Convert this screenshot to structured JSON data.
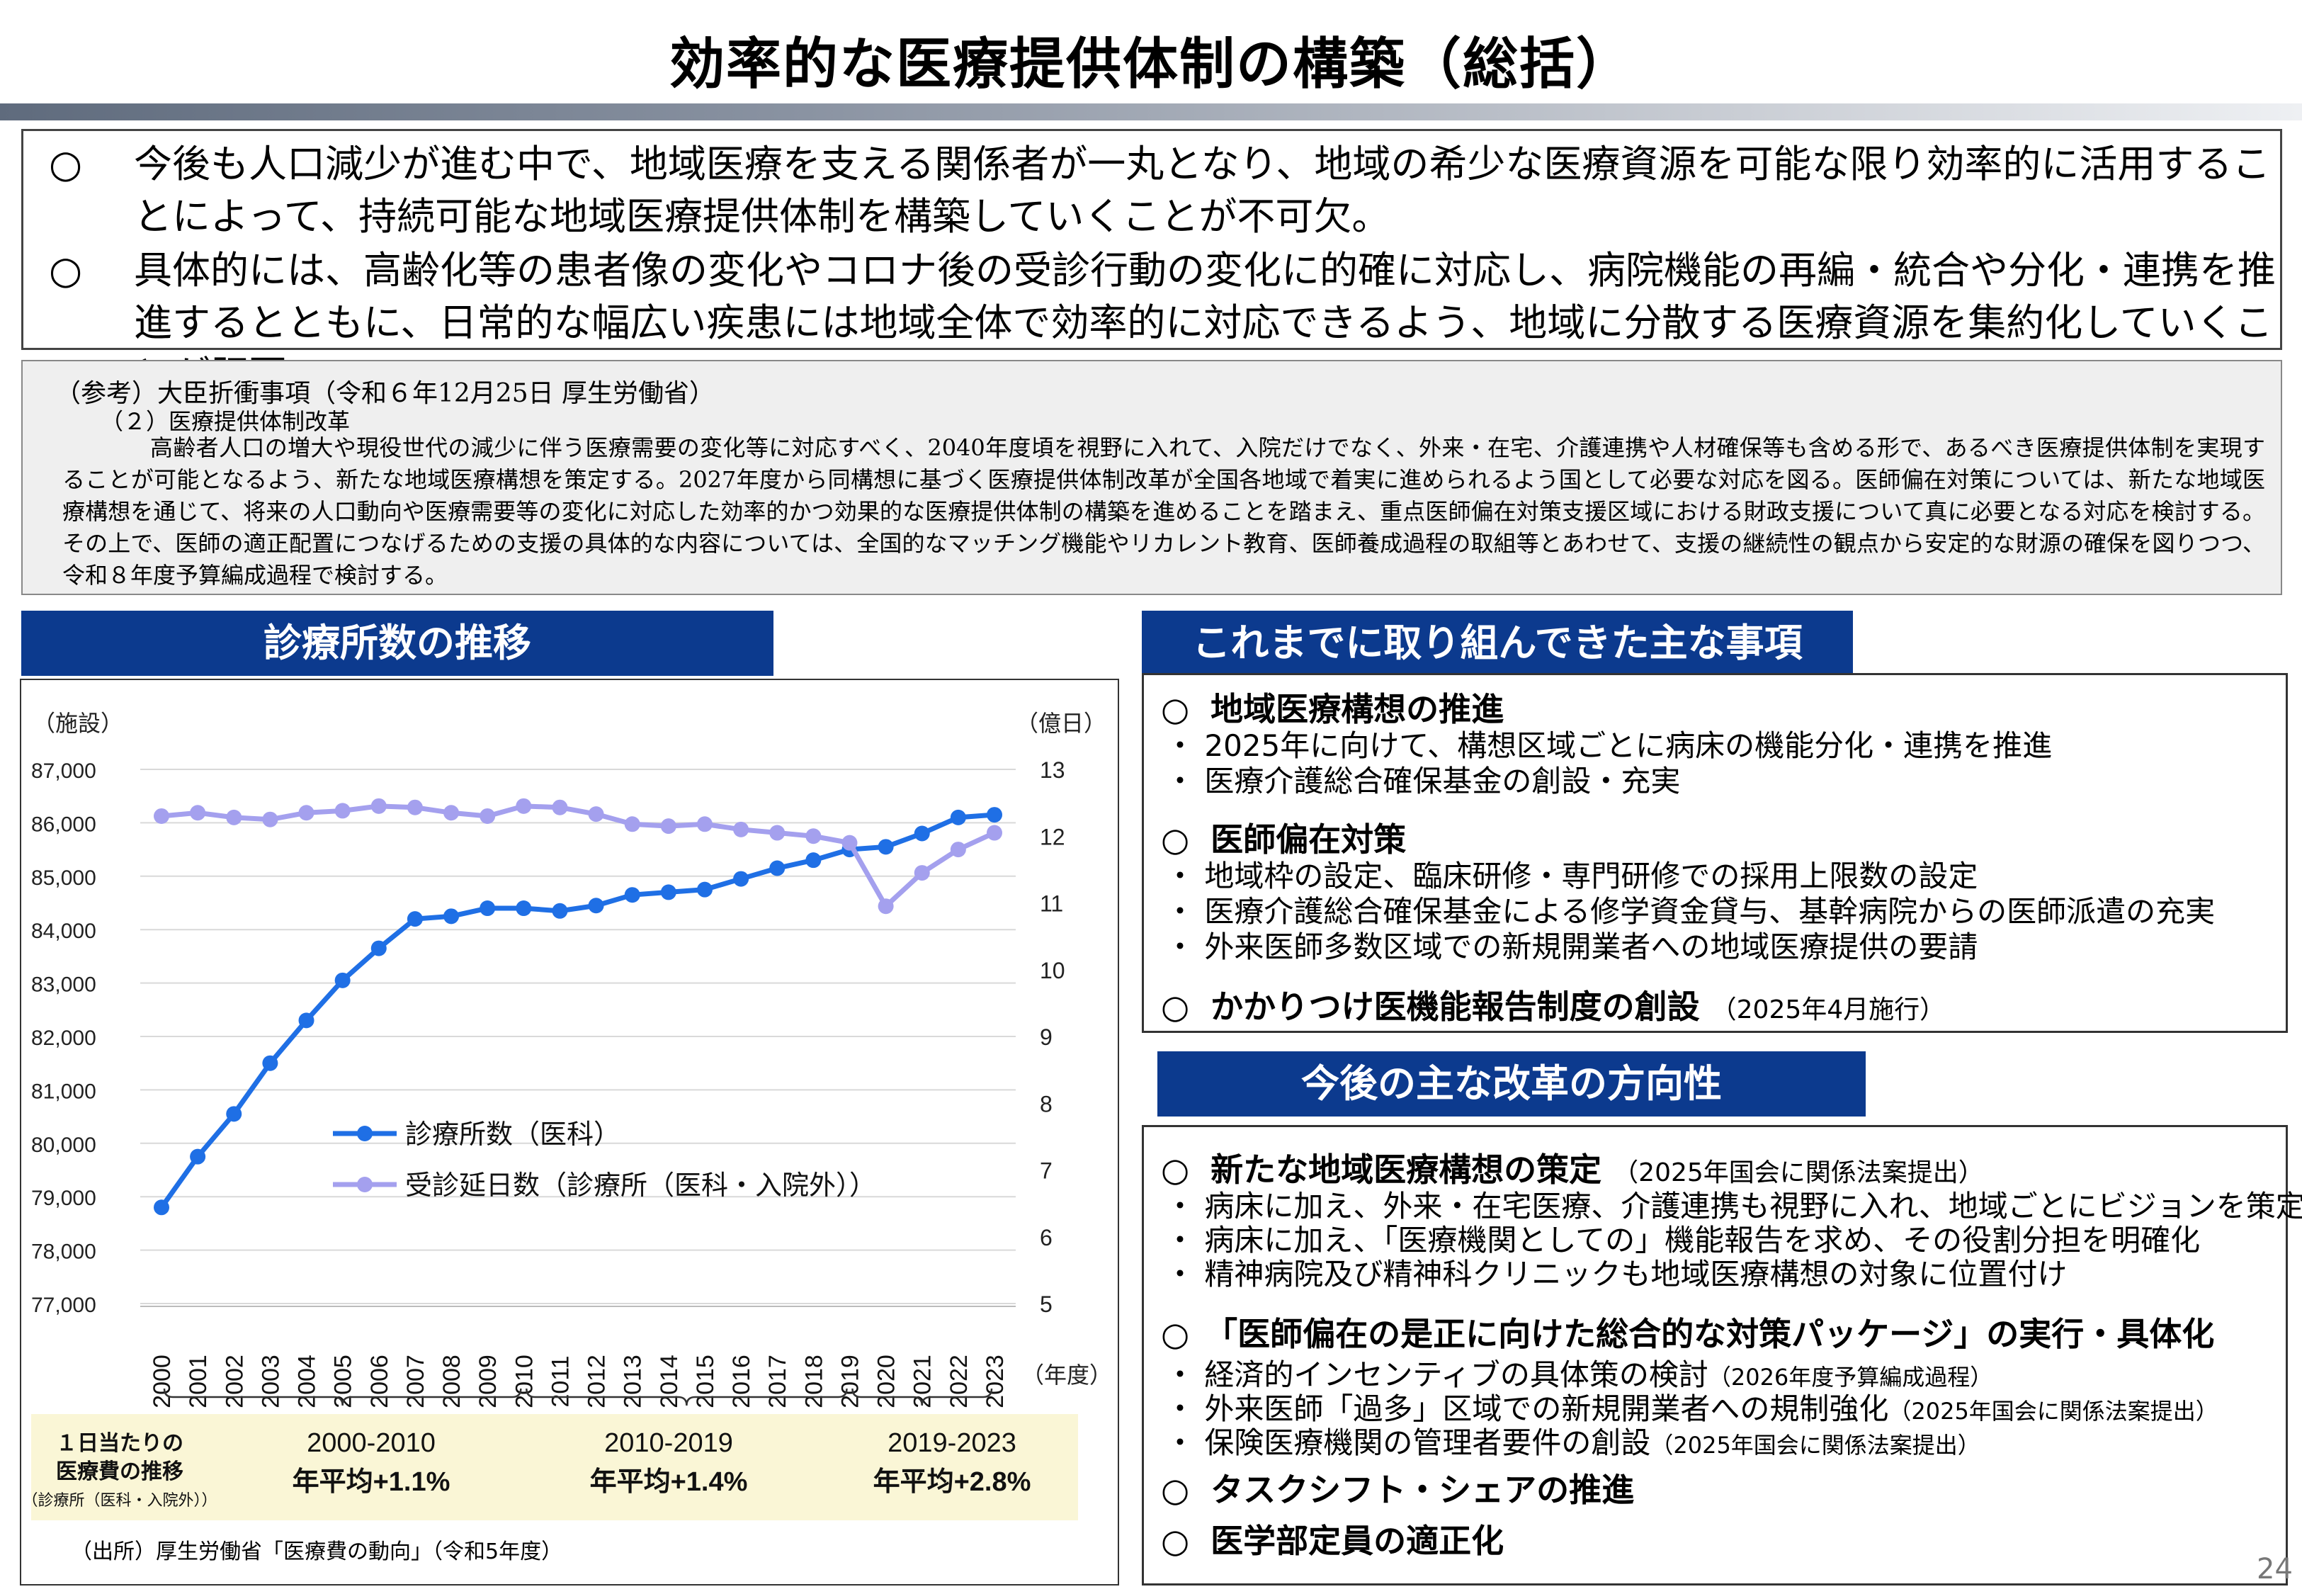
{
  "title": "効率的な医療提供体制の構築（総括）",
  "summary": [
    {
      "mark": "○",
      "text": "今後も人口減少が進む中で、地域医療を支える関係者が一丸となり、地域の希少な医療資源を可能な限り効率的に活用することによって、持続可能な地域医療提供体制を構築していくことが不可欠。"
    },
    {
      "mark": "○",
      "text": "具体的には、高齢化等の患者像の変化やコロナ後の受診行動の変化に的確に対応し、病院機能の再編・統合や分化・連携を推進するとともに、日常的な幅広い疾患には地域全体で効率的に対応できるよう、地域に分散する医療資源を集約化していくことが肝要。"
    }
  ],
  "reference": {
    "heading": "（参考）大臣折衝事項（令和６年12月25日 厚生労働省）",
    "subheading": "（２）医療提供体制改革",
    "body": "高齢者人口の増大や現役世代の減少に伴う医療需要の変化等に対応すべく、2040年度頃を視野に入れて、入院だけでなく、外来・在宅、介護連携や人材確保等も含める形で、あるべき医療提供体制を実現することが可能となるよう、新たな地域医療構想を策定する。2027年度から同構想に基づく医療提供体制改革が全国各地域で着実に進められるよう国として必要な対応を図る。医師偏在対策については、新たな地域医療構想を通じて、将来の人口動向や医療需要等の変化に対応した効率的かつ効果的な医療提供体制の構築を進めることを踏まえ、重点医師偏在対策支援区域における財政支援について真に必要となる対応を検討する。その上で、医師の適正配置につなげるための支援の具体的な内容については、全国的なマッチング機能やリカレント教育、医師養成過程の取組等とあわせて、支援の継続性の観点から安定的な財源の確保を図りつつ、令和８年度予算編成過程で検討する。"
  },
  "left_header": "診療所数の推移",
  "chart_data": {
    "type": "line",
    "title": "",
    "x": [
      "2000",
      "2001",
      "2002",
      "2003",
      "2004",
      "2005",
      "2006",
      "2007",
      "2008",
      "2009",
      "2010",
      "2011",
      "2012",
      "2013",
      "2014",
      "2015",
      "2016",
      "2017",
      "2018",
      "2019",
      "2020",
      "2021",
      "2022",
      "2023"
    ],
    "xlabel": "（年度）",
    "ylabel_left": "（施設）",
    "ylabel_right": "（億日）",
    "ylim_left": [
      77000,
      87000
    ],
    "ylim_right": [
      5,
      13
    ],
    "yticks_left": [
      "87,000",
      "86,000",
      "85,000",
      "84,000",
      "83,000",
      "82,000",
      "81,000",
      "80,000",
      "79,000",
      "78,000",
      "77,000"
    ],
    "yticks_right": [
      "13",
      "12",
      "11",
      "10",
      "9",
      "8",
      "7",
      "6",
      "5"
    ],
    "grid": true,
    "legend_position": "center-left",
    "series": [
      {
        "name": "診療所数（医科）",
        "axis": "left",
        "color": "#1f6fe5",
        "values": [
          78800,
          79750,
          80550,
          81500,
          82300,
          83050,
          83650,
          84200,
          84250,
          84400,
          84400,
          84350,
          84450,
          84650,
          84700,
          84750,
          84950,
          85150,
          85300,
          85500,
          85550,
          85800,
          86100,
          86150
        ]
      },
      {
        "name": "受診延日数（診療所（医科・入院外））",
        "axis": "right",
        "color": "#a4a0ee",
        "values": [
          12.3,
          12.35,
          12.28,
          12.25,
          12.35,
          12.38,
          12.45,
          12.43,
          12.35,
          12.3,
          12.45,
          12.43,
          12.33,
          12.18,
          12.15,
          12.18,
          12.1,
          12.05,
          12.0,
          11.9,
          10.95,
          11.45,
          11.8,
          12.05
        ]
      }
    ],
    "periods": [
      {
        "label": "2000-2010",
        "value": "年平均+1.1%"
      },
      {
        "label": "2010-2019",
        "value": "年平均+1.4%"
      },
      {
        "label": "2019-2023",
        "value": "年平均+2.8%"
      }
    ],
    "period_title": [
      "１日当たりの",
      "医療費の推移"
    ],
    "period_note": "（診療所（医科・入院外））",
    "source": "（出所）厚生労働省「医療費の動向」（令和5年度）"
  },
  "right_section1": {
    "header": "これまでに取り組んできた主な事項",
    "items": [
      {
        "mark": "○",
        "title": "地域医療構想の推進",
        "note": "",
        "bullets": [
          "・ 2025年に向けて、構想区域ごとに病床の機能分化・連携を推進",
          "・ 医療介護総合確保基金の創設・充実"
        ]
      },
      {
        "mark": "○",
        "title": "医師偏在対策",
        "note": "",
        "bullets": [
          "・ 地域枠の設定、臨床研修・専門研修での採用上限数の設定",
          "・ 医療介護総合確保基金による修学資金貸与、基幹病院からの医師派遣の充実",
          "・ 外来医師多数区域での新規開業者への地域医療提供の要請"
        ]
      },
      {
        "mark": "○",
        "title": "かかりつけ医機能報告制度の創設",
        "note": "（2025年4月施行）",
        "bullets": []
      }
    ]
  },
  "right_section2": {
    "header": "今後の主な改革の方向性",
    "items": [
      {
        "mark": "○",
        "title": "新たな地域医療構想の策定",
        "note": "（2025年国会に関係法案提出）",
        "bullets": [
          {
            "text": "・ 病床に加え、外来・在宅医療、介護連携も視野に入れ、地域ごとにビジョンを策定",
            "note": ""
          },
          {
            "text": "・ 病床に加え、「医療機関としての」機能報告を求め、その役割分担を明確化",
            "note": ""
          },
          {
            "text": "・ 精神病院及び精神科クリニックも地域医療構想の対象に位置付け",
            "note": ""
          }
        ]
      },
      {
        "mark": "○",
        "title": "「医師偏在の是正に向けた総合的な対策パッケージ」の実行・具体化",
        "note": "",
        "bullets": [
          {
            "text": "・ 経済的インセンティブの具体策の検討",
            "note": "（2026年度予算編成過程）"
          },
          {
            "text": "・ 外来医師「過多」区域での新規開業者への規制強化",
            "note": "（2025年国会に関係法案提出）"
          },
          {
            "text": "・ 保険医療機関の管理者要件の創設",
            "note": "（2025年国会に関係法案提出）"
          }
        ]
      },
      {
        "mark": "○",
        "title": "タスクシフト・シェアの推進",
        "note": "",
        "bullets": []
      },
      {
        "mark": "○",
        "title": "医学部定員の適正化",
        "note": "",
        "bullets": []
      }
    ]
  },
  "page_number": "24"
}
